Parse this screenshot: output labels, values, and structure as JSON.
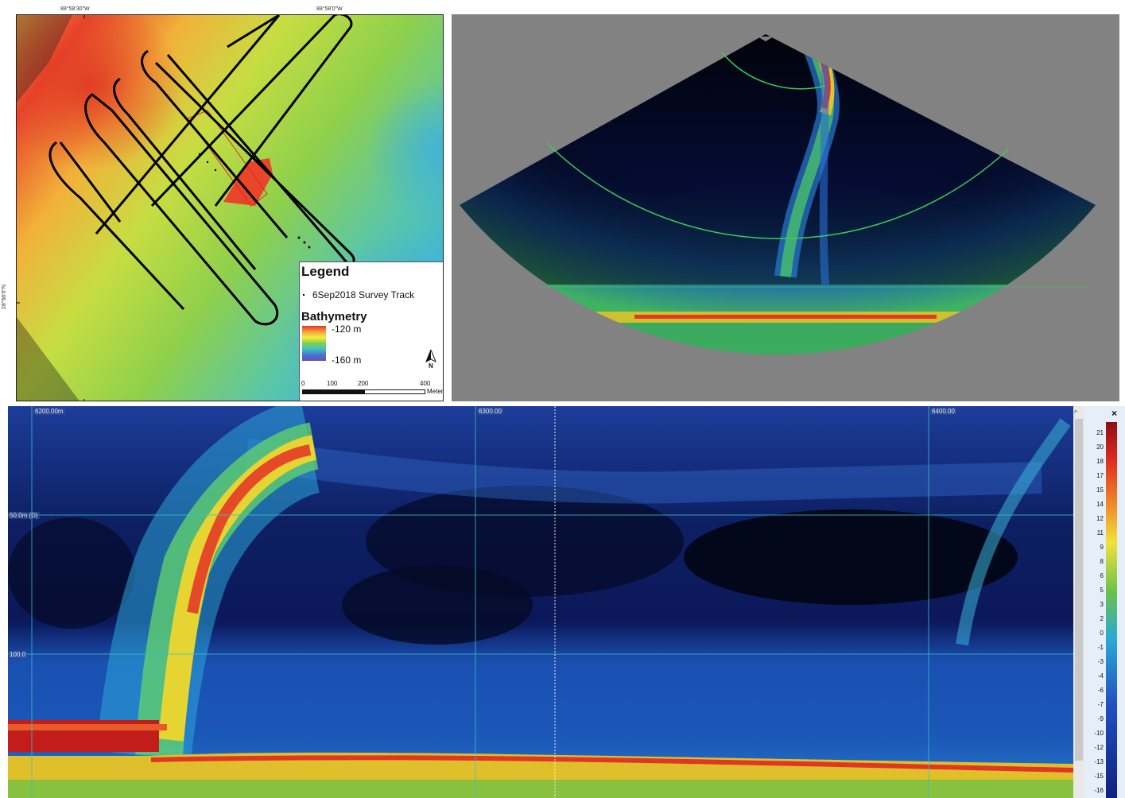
{
  "map": {
    "coords": {
      "lon_left": "88°58'30\"W",
      "lon_right": "88°58'0\"W",
      "lat": "28°56'0\"N"
    },
    "legend": {
      "title": "Legend",
      "track_label": "6Sep2018 Survey Track",
      "bathymetry_title": "Bathymetry",
      "high": "-120 m",
      "low": "-160 m",
      "north": "N",
      "scale_ticks": [
        "0",
        "100",
        "200",
        "400"
      ],
      "scale_unit": "Meters"
    },
    "colors": {
      "shallow": "#e8352b",
      "mid": "#f4ee3c",
      "green": "#7fd04a",
      "deep": "#4a6fcf",
      "track": "#000000"
    }
  },
  "echogram": {
    "distance_labels": [
      "6200.00m",
      "6300.00",
      "6400.00"
    ],
    "depth_labels": [
      "50.0m (D)",
      "100.0"
    ],
    "colorbar_ticks": [
      "21",
      "20",
      "18",
      "17",
      "15",
      "14",
      "12",
      "11",
      "9",
      "8",
      "6",
      "5",
      "3",
      "2",
      "0",
      "-1",
      "-3",
      "-4",
      "-6",
      "-7",
      "-9",
      "-10",
      "-12",
      "-13",
      "-15",
      "-16"
    ],
    "close_label": "×",
    "scroll_up": "^"
  }
}
